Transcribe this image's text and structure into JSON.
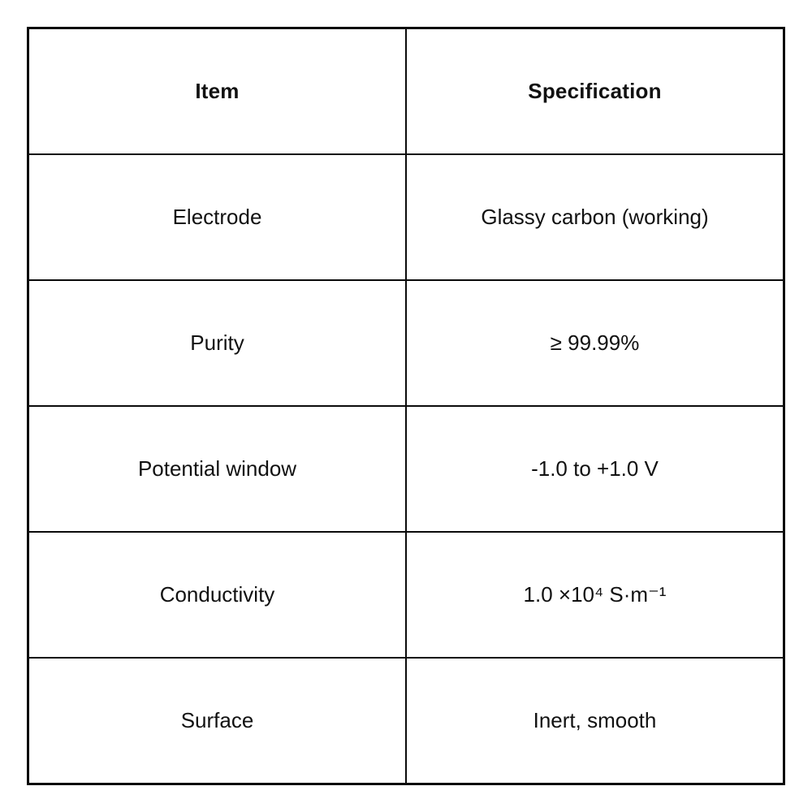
{
  "table": {
    "headers": {
      "item": "Item",
      "specification": "Specification"
    },
    "rows": [
      {
        "item": "Electrode",
        "spec": "Glassy carbon (working)"
      },
      {
        "item": "Purity",
        "spec": "≥ 99.99%"
      },
      {
        "item": "Potential window",
        "spec": "-1.0 to +1.0 V"
      },
      {
        "item": "Conductivity",
        "spec": "1.0 ×10⁴ S·m⁻¹"
      },
      {
        "item": "Surface",
        "spec": "Inert, smooth"
      }
    ],
    "colors": {
      "border": "#0a0a0a",
      "text": "#111111",
      "background": "#ffffff"
    }
  }
}
